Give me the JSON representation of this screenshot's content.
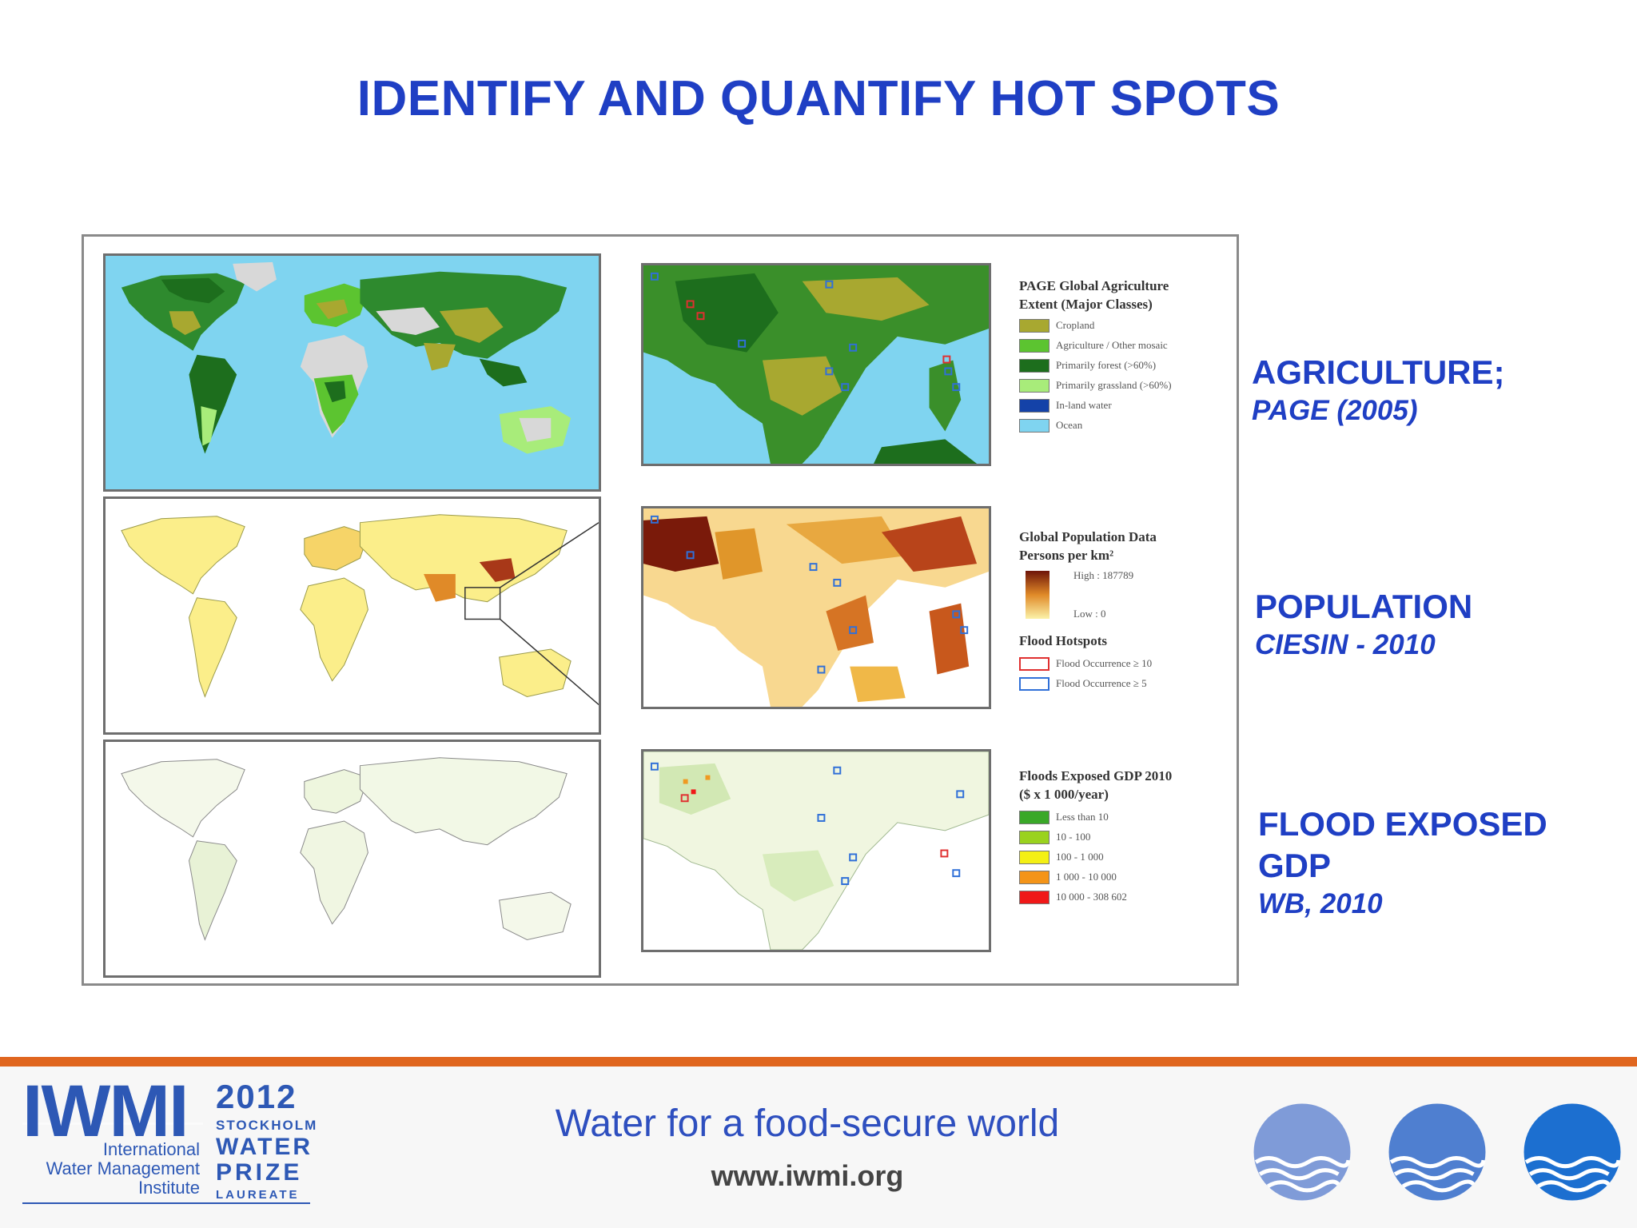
{
  "title": "IDENTIFY AND QUANTIFY HOT SPOTS",
  "legends": {
    "agriculture": {
      "title": "PAGE Global Agriculture Extent (Major Classes)",
      "items": [
        {
          "label": "Cropland",
          "color": "#a8a830"
        },
        {
          "label": "Agriculture / Other mosaic",
          "color": "#5cc430"
        },
        {
          "label": "Primarily forest (>60%)",
          "color": "#1d6e1d"
        },
        {
          "label": "Primarily grassland (>60%)",
          "color": "#a8ec7a"
        },
        {
          "label": "In-land water",
          "color": "#1442a8"
        },
        {
          "label": "Ocean",
          "color": "#7fd4f0"
        }
      ]
    },
    "population": {
      "title": "Global Population Data Persons per km²",
      "high": "High : 187789",
      "low": "Low : 0",
      "hotspots_title": "Flood Hotspots",
      "hotspots": [
        {
          "label": "Flood Occurrence ≥ 10",
          "color": "#e03030"
        },
        {
          "label": "Flood Occurrence ≥ 5",
          "color": "#3070d8"
        }
      ]
    },
    "gdp": {
      "title": "Floods Exposed GDP 2010 ($ x 1 000/year)",
      "items": [
        {
          "label": "Less than 10",
          "color": "#3aa828"
        },
        {
          "label": "10 - 100",
          "color": "#9ad21e"
        },
        {
          "label": "100 - 1 000",
          "color": "#f4f014"
        },
        {
          "label": "1 000 - 10 000",
          "color": "#f49418"
        },
        {
          "label": "10 000 - 308 602",
          "color": "#f01818"
        }
      ]
    }
  },
  "side_labels": [
    {
      "heading": "AGRICULTURE;",
      "source": "PAGE (2005)"
    },
    {
      "heading": "POPULATION",
      "source": "CIESIN - 2010"
    },
    {
      "heading_line1": "FLOOD EXPOSED",
      "heading_line2": "GDP",
      "source": "WB, 2010"
    }
  ],
  "footer": {
    "tagline": "Water for a food-secure world",
    "url": "www.iwmi.org",
    "logo_text": "IWMI",
    "logo_sub": [
      "International",
      "Water Management",
      "Institute"
    ],
    "prize": [
      "2012",
      "STOCKHOLM",
      "WATER",
      "PRIZE",
      "LAUREATE"
    ]
  },
  "colors": {
    "title_blue": "#1f3fc4",
    "accent_orange": "#e0661f",
    "ocean": "#7fd4f0",
    "population_high": "#6e1408",
    "population_low": "#fbf2a8"
  }
}
